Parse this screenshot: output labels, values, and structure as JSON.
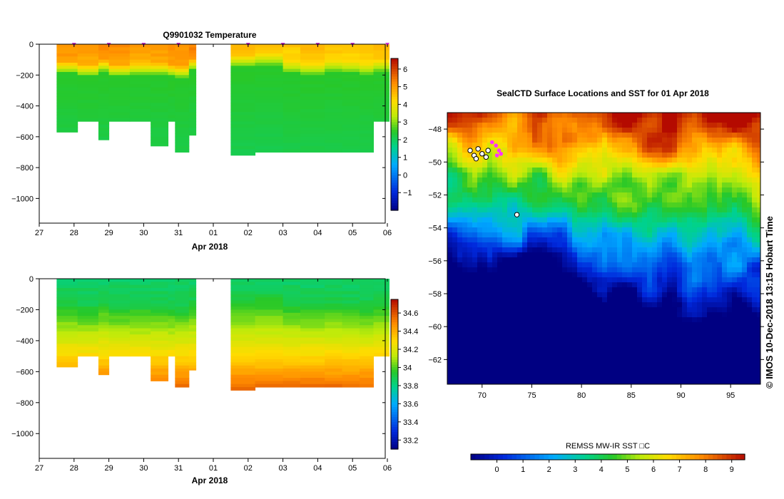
{
  "chart_data": [
    {
      "type": "heatmap",
      "name": "temperature-section",
      "title": "Q9901032  Temperature",
      "xlabel": "Apr 2018",
      "ylabel": "",
      "x_ticks": [
        "27",
        "28",
        "29",
        "30",
        "31",
        "01",
        "02",
        "03",
        "04",
        "05",
        "06"
      ],
      "y_ticks": [
        0,
        -200,
        -400,
        -600,
        -800,
        -1000
      ],
      "ylim": [
        -1160,
        0
      ],
      "colorbar": {
        "min": -2,
        "max": 6.6,
        "ticks": [
          -1,
          0,
          1,
          2,
          3,
          4,
          5,
          6
        ]
      },
      "profile_markers_x": [
        "28",
        "29",
        "30",
        "31",
        "02",
        "03",
        "04",
        "05",
        "06"
      ],
      "profiles": [
        {
          "x": "27.5",
          "bottom_depth": -570,
          "thermocline_depth": -150,
          "surface_temp": 5.2
        },
        {
          "x": "28.1",
          "bottom_depth": -500,
          "thermocline_depth": -170,
          "surface_temp": 5.1
        },
        {
          "x": "28.7",
          "bottom_depth": -620,
          "thermocline_depth": -140,
          "surface_temp": 5.3
        },
        {
          "x": "29.0",
          "bottom_depth": -500,
          "thermocline_depth": -170,
          "surface_temp": 5.2
        },
        {
          "x": "29.6",
          "bottom_depth": -500,
          "thermocline_depth": -160,
          "surface_temp": 5.0
        },
        {
          "x": "30.2",
          "bottom_depth": -660,
          "thermocline_depth": -160,
          "surface_temp": 5.1
        },
        {
          "x": "30.7",
          "bottom_depth": -500,
          "thermocline_depth": -170,
          "surface_temp": 5.3
        },
        {
          "x": "30.9",
          "bottom_depth": -700,
          "thermocline_depth": -180,
          "surface_temp": 5.2
        },
        {
          "x": "31.3",
          "bottom_depth": -590,
          "thermocline_depth": -130,
          "surface_temp": 5.4
        },
        {
          "x": "01.5",
          "bottom_depth": -720,
          "thermocline_depth": -110,
          "surface_temp": 4.8
        },
        {
          "x": "02.2",
          "bottom_depth": -700,
          "thermocline_depth": -100,
          "surface_temp": 4.6
        },
        {
          "x": "03.0",
          "bottom_depth": -700,
          "thermocline_depth": -150,
          "surface_temp": 4.5
        },
        {
          "x": "03.5",
          "bottom_depth": -700,
          "thermocline_depth": -160,
          "surface_temp": 4.7
        },
        {
          "x": "04.2",
          "bottom_depth": -700,
          "thermocline_depth": -140,
          "surface_temp": 4.6
        },
        {
          "x": "04.7",
          "bottom_depth": -700,
          "thermocline_depth": -150,
          "surface_temp": 4.5
        },
        {
          "x": "05.2",
          "bottom_depth": -700,
          "thermocline_depth": -160,
          "surface_temp": 4.6
        },
        {
          "x": "05.6",
          "bottom_depth": -500,
          "thermocline_depth": -140,
          "surface_temp": 4.7
        }
      ]
    },
    {
      "type": "heatmap",
      "name": "salinity-section",
      "title": "",
      "xlabel": "Apr 2018",
      "ylabel": "",
      "x_ticks": [
        "27",
        "28",
        "29",
        "30",
        "31",
        "01",
        "02",
        "03",
        "04",
        "05",
        "06"
      ],
      "y_ticks": [
        0,
        -200,
        -400,
        -600,
        -800,
        -1000
      ],
      "ylim": [
        -1160,
        0
      ],
      "colorbar": {
        "min": 33.1,
        "max": 34.75,
        "ticks": [
          33.2,
          33.4,
          33.6,
          33.8,
          34,
          34.2,
          34.4,
          34.6
        ]
      }
    },
    {
      "type": "heatmap",
      "name": "sst-map",
      "title": "SealCTD Surface Locations and SST for 01 Apr 2018",
      "x_ticks": [
        70,
        75,
        80,
        85,
        90,
        95
      ],
      "y_ticks": [
        -48,
        -50,
        -52,
        -54,
        -56,
        -58,
        -60,
        -62
      ],
      "xlim": [
        66.5,
        98
      ],
      "ylim": [
        -63.5,
        -47
      ],
      "colorbar": {
        "label": "REMSS MW-IR SST □C",
        "min": -1,
        "max": 9.5,
        "ticks": [
          0,
          1,
          2,
          3,
          4,
          5,
          6,
          7,
          8,
          9
        ]
      },
      "seal_locations": [
        {
          "lon": 68.8,
          "lat": -49.3
        },
        {
          "lon": 69.2,
          "lat": -49.6
        },
        {
          "lon": 69.6,
          "lat": -49.2
        },
        {
          "lon": 69.4,
          "lat": -49.8
        },
        {
          "lon": 70.0,
          "lat": -49.5
        },
        {
          "lon": 70.4,
          "lat": -49.7
        },
        {
          "lon": 70.6,
          "lat": -49.3
        },
        {
          "lon": 73.5,
          "lat": -53.2
        }
      ],
      "seal_track_recent": [
        {
          "lon": 71.0,
          "lat": -48.8
        },
        {
          "lon": 71.4,
          "lat": -49.0
        },
        {
          "lon": 71.7,
          "lat": -49.3
        },
        {
          "lon": 71.5,
          "lat": -49.6
        },
        {
          "lon": 71.9,
          "lat": -49.5
        }
      ]
    }
  ],
  "annotations": {
    "side_text": "©  IMOS 10-Dec-2018 13:15 Hobart Time"
  },
  "colors": {
    "axis": "#000000",
    "marker": "#cc33cc",
    "seal_track": "#ff33ff"
  }
}
